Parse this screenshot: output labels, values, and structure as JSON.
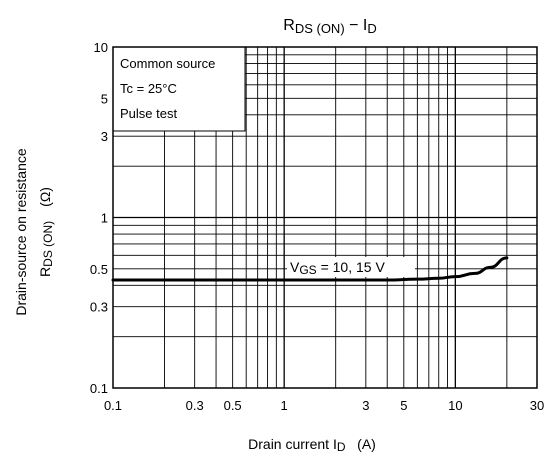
{
  "chart_data": {
    "type": "line",
    "title": {
      "main": "R",
      "main_sub": "DS (ON)",
      "sep": " − I",
      "sep_sub": "D"
    },
    "xlabel": {
      "main": "Drain current   I",
      "sub": "D",
      "unit": "   (A)"
    },
    "ylabel": {
      "line1": "Drain-source on resistance",
      "line2_main": "R",
      "line2_sub": "DS (ON)",
      "line2_unit": "(Ω)"
    },
    "x_scale": "log",
    "y_scale": "log",
    "xlim": [
      0.1,
      30
    ],
    "ylim": [
      0.1,
      10
    ],
    "x_ticks": [
      {
        "value": 0.1,
        "label": "0.1"
      },
      {
        "value": 0.3,
        "label": "0.3"
      },
      {
        "value": 0.5,
        "label": "0.5"
      },
      {
        "value": 1,
        "label": "1"
      },
      {
        "value": 3,
        "label": "3"
      },
      {
        "value": 5,
        "label": "5"
      },
      {
        "value": 10,
        "label": "10"
      },
      {
        "value": 30,
        "label": "30"
      }
    ],
    "y_ticks": [
      {
        "value": 0.1,
        "label": "0.1"
      },
      {
        "value": 0.3,
        "label": "0.3"
      },
      {
        "value": 0.5,
        "label": "0.5"
      },
      {
        "value": 1,
        "label": "1"
      },
      {
        "value": 3,
        "label": "3"
      },
      {
        "value": 5,
        "label": "5"
      },
      {
        "value": 10,
        "label": "10"
      }
    ],
    "grid": true,
    "conditions": [
      "Common source",
      "Tc = 25°C",
      "Pulse test"
    ],
    "series": [
      {
        "label": {
          "main": "V",
          "sub": "GS",
          "rest": " = 10, 15 V"
        },
        "color": "#000000",
        "points": [
          {
            "x": 0.1,
            "y": 0.43
          },
          {
            "x": 1,
            "y": 0.43
          },
          {
            "x": 4,
            "y": 0.43
          },
          {
            "x": 6,
            "y": 0.435
          },
          {
            "x": 8,
            "y": 0.44
          },
          {
            "x": 10,
            "y": 0.45
          },
          {
            "x": 13,
            "y": 0.47
          },
          {
            "x": 16,
            "y": 0.51
          },
          {
            "x": 20,
            "y": 0.58
          }
        ]
      }
    ]
  }
}
